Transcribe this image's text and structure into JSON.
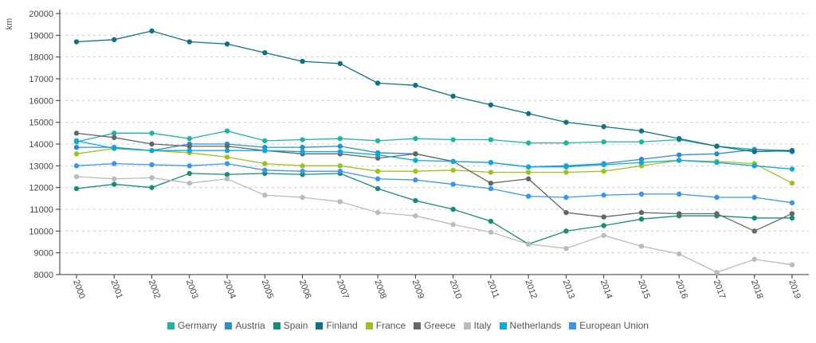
{
  "chart_data": {
    "type": "line",
    "ylabel": "km",
    "ylim": [
      8000,
      20000
    ],
    "yticks": [
      8000,
      9000,
      10000,
      11000,
      12000,
      13000,
      14000,
      15000,
      16000,
      17000,
      18000,
      19000,
      20000
    ],
    "x": [
      "2000",
      "2001",
      "2002",
      "2003",
      "2004",
      "2005",
      "2006",
      "2007",
      "2008",
      "2009",
      "2010",
      "2011",
      "2012",
      "2013",
      "2014",
      "2015",
      "2016",
      "2017",
      "2018",
      "2019"
    ],
    "grid": true,
    "legend_position": "bottom",
    "series": [
      {
        "name": "Germany",
        "color": "#20b2a5",
        "values": [
          14100,
          14500,
          14500,
          14250,
          14600,
          14150,
          14200,
          14250,
          14150,
          14250,
          14200,
          14200,
          14050,
          14050,
          14100,
          14100,
          14200,
          13900,
          13750,
          13700
        ]
      },
      {
        "name": "Austria",
        "color": "#2a8fd0",
        "values": [
          13850,
          13850,
          13700,
          14000,
          14000,
          13850,
          13850,
          13900,
          13600,
          13550,
          13200,
          13150,
          12950,
          13000,
          13100,
          13300,
          13500,
          13550,
          13750,
          13650
        ]
      },
      {
        "name": "Spain",
        "color": "#178c7b",
        "values": [
          11950,
          12150,
          12000,
          12650,
          12600,
          12650,
          12600,
          12650,
          11950,
          11400,
          11000,
          10450,
          9400,
          10000,
          10250,
          10550,
          10700,
          10700,
          10600,
          10600
        ]
      },
      {
        "name": "Finland",
        "color": "#116f87",
        "values": [
          18700,
          18800,
          19200,
          18700,
          18600,
          18200,
          17800,
          17700,
          16800,
          16700,
          16200,
          15800,
          15400,
          15000,
          14800,
          14600,
          14250,
          13900,
          13650,
          13700
        ]
      },
      {
        "name": "France",
        "color": "#9bc21f",
        "values": [
          13550,
          13800,
          13700,
          13600,
          13400,
          13100,
          13000,
          13000,
          12750,
          12750,
          12800,
          12700,
          12700,
          12700,
          12750,
          13000,
          13250,
          13200,
          13100,
          12200
        ]
      },
      {
        "name": "Greece",
        "color": "#666666",
        "values": [
          14500,
          14300,
          14000,
          13900,
          13900,
          13700,
          13550,
          13550,
          13350,
          13550,
          13200,
          12200,
          12400,
          10850,
          10650,
          10850,
          10800,
          10800,
          10000,
          10800
        ]
      },
      {
        "name": "Italy",
        "color": "#bbbbbb",
        "values": [
          12500,
          12400,
          12450,
          12200,
          12400,
          11650,
          11550,
          11350,
          10850,
          10700,
          10300,
          9950,
          9400,
          9200,
          9800,
          9300,
          8950,
          8100,
          8700,
          8450
        ]
      },
      {
        "name": "Netherlands",
        "color": "#10a8d8",
        "values": [
          14150,
          13800,
          13700,
          13700,
          13700,
          13700,
          13650,
          13650,
          13500,
          13250,
          13200,
          13150,
          12950,
          12950,
          13050,
          13150,
          13250,
          13150,
          13000,
          12850
        ]
      },
      {
        "name": "European Union",
        "color": "#3d94f0",
        "values": [
          13000,
          13100,
          13050,
          13000,
          13100,
          12800,
          12750,
          12750,
          12400,
          12350,
          12150,
          11950,
          11600,
          11550,
          11650,
          11700,
          11700,
          11550,
          11550,
          11300
        ]
      }
    ]
  }
}
